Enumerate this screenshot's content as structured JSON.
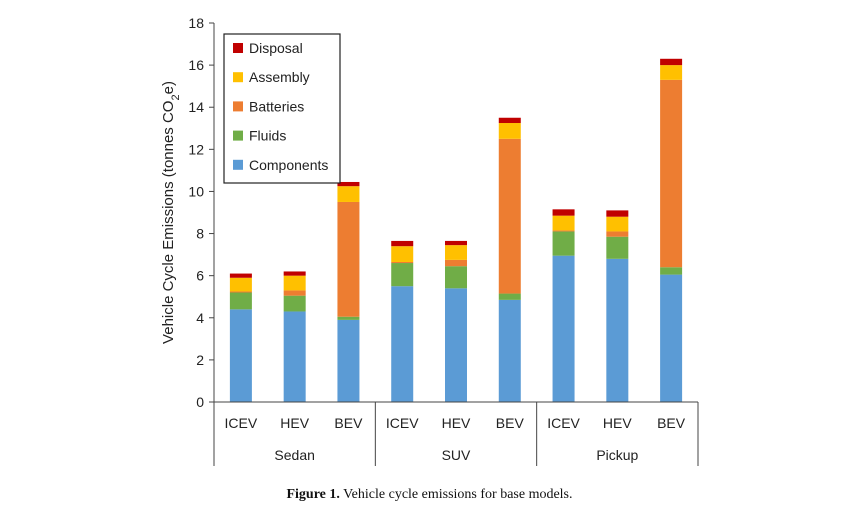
{
  "caption": {
    "label": "Figure 1.",
    "text": "Vehicle cycle emissions for base models."
  },
  "chart_data": {
    "type": "bar",
    "stacked": true,
    "ylabel_prefix": "Vehicle Cycle Emissions (tonnes CO",
    "ylabel_sub": "2",
    "ylabel_suffix": "e)",
    "ylim": [
      0,
      18
    ],
    "yticks": [
      0,
      2,
      4,
      6,
      8,
      10,
      12,
      14,
      16,
      18
    ],
    "groups": [
      "Sedan",
      "SUV",
      "Pickup"
    ],
    "categories": [
      "ICEV",
      "HEV",
      "BEV",
      "ICEV",
      "HEV",
      "BEV",
      "ICEV",
      "HEV",
      "BEV"
    ],
    "legend_position": "top-left",
    "grid": false,
    "series": [
      {
        "name": "Components",
        "color": "#5b9bd5",
        "values": [
          4.4,
          4.3,
          3.9,
          5.5,
          5.4,
          4.85,
          6.95,
          6.8,
          6.05
        ]
      },
      {
        "name": "Fluids",
        "color": "#70ad47",
        "values": [
          0.8,
          0.75,
          0.15,
          1.1,
          1.05,
          0.3,
          1.15,
          1.05,
          0.35
        ]
      },
      {
        "name": "Batteries",
        "color": "#ed7d31",
        "values": [
          0.05,
          0.25,
          5.45,
          0.05,
          0.3,
          7.35,
          0.05,
          0.25,
          8.9
        ]
      },
      {
        "name": "Assembly",
        "color": "#ffc000",
        "values": [
          0.65,
          0.7,
          0.75,
          0.75,
          0.7,
          0.75,
          0.7,
          0.7,
          0.7
        ]
      },
      {
        "name": "Disposal",
        "color": "#c00000",
        "values": [
          0.2,
          0.2,
          0.2,
          0.25,
          0.2,
          0.25,
          0.3,
          0.3,
          0.3
        ]
      }
    ]
  }
}
